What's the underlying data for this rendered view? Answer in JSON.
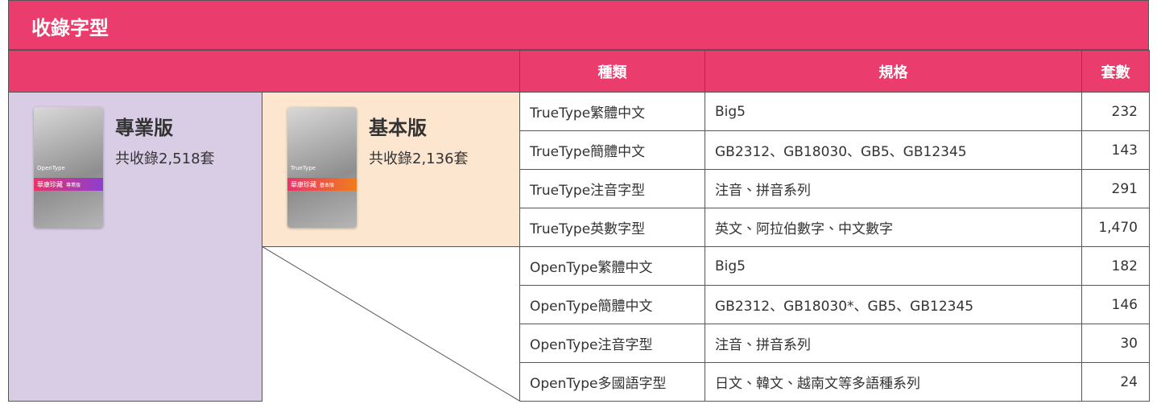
{
  "header": {
    "title": "收錄字型"
  },
  "editions": [
    {
      "name": "專業版",
      "summary": "共收錄2,518套",
      "card_format": "OpenType",
      "card_brand": "華康珍藏",
      "card_edition": "專業版"
    },
    {
      "name": "基本版",
      "summary": "共收錄2,136套",
      "card_format": "TrueType",
      "card_brand": "華康珍藏",
      "card_edition": "基本版"
    }
  ],
  "table": {
    "columns": [
      "種類",
      "規格",
      "套數"
    ],
    "rows": [
      [
        "TrueType繁體中文",
        "Big5",
        "232"
      ],
      [
        "TrueType簡體中文",
        "GB2312、GB18030、GB5、GB12345",
        "143"
      ],
      [
        "TrueType注音字型",
        "注音、拼音系列",
        "291"
      ],
      [
        "TrueType英數字型",
        "英文、阿拉伯數字、中文數字",
        "1,470"
      ],
      [
        "OpenType繁體中文",
        "Big5",
        "182"
      ],
      [
        "OpenType簡體中文",
        "GB2312、GB18030*、GB5、GB12345",
        "146"
      ],
      [
        "OpenType注音字型",
        "注音、拼音系列",
        "30"
      ],
      [
        "OpenType多國語字型",
        "日文、韓文、越南文等多語種系列",
        "24"
      ]
    ]
  }
}
